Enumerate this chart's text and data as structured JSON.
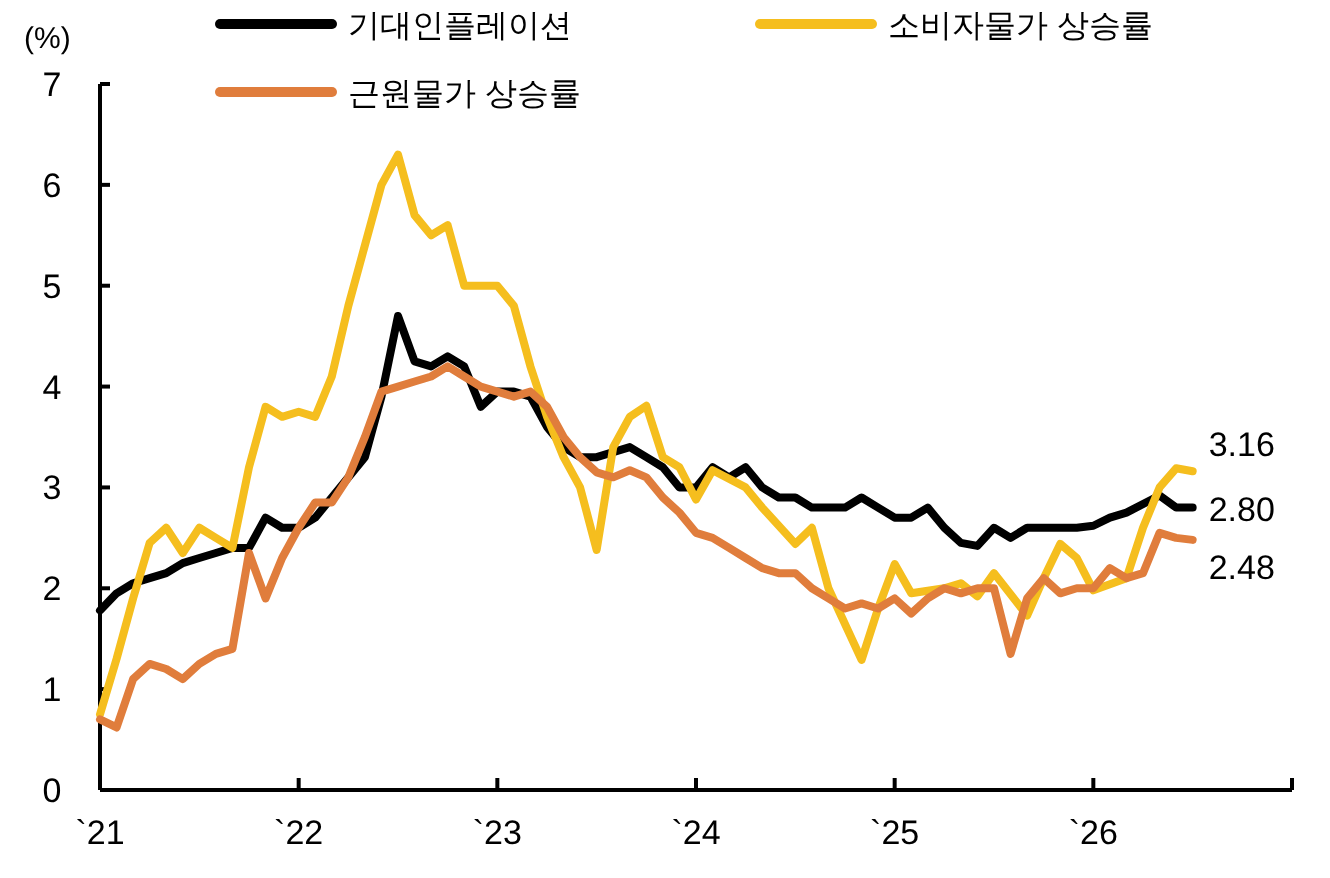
{
  "chart_data": {
    "type": "line",
    "ylabel": "(%)",
    "xlim": [
      "2021-01",
      "2027-01"
    ],
    "xticks": [
      {
        "value": "2021",
        "label": "`21"
      },
      {
        "value": "2022",
        "label": "`22"
      },
      {
        "value": "2023",
        "label": "`23"
      },
      {
        "value": "2024",
        "label": "`24"
      },
      {
        "value": "2025",
        "label": "`25"
      },
      {
        "value": "2026",
        "label": "`26"
      },
      {
        "value": "2027",
        "label": null
      }
    ],
    "ylim": [
      0,
      7
    ],
    "yticks": [
      0,
      1,
      2,
      3,
      4,
      5,
      6,
      7
    ],
    "grid": false,
    "legend": "top",
    "line_style": "solid",
    "marker": "none",
    "series": [
      {
        "name": "기대인플레이션",
        "color": "#000000",
        "x": [
          "2021-01",
          "2021-02",
          "2021-03",
          "2021-04",
          "2021-05",
          "2021-06",
          "2021-07",
          "2021-08",
          "2021-09",
          "2021-10",
          "2021-11",
          "2021-12",
          "2022-01",
          "2022-02",
          "2022-03",
          "2022-04",
          "2022-05",
          "2022-06",
          "2022-07",
          "2022-08",
          "2022-09",
          "2022-10",
          "2022-11",
          "2022-12",
          "2023-01",
          "2023-02",
          "2023-03",
          "2023-04",
          "2023-05",
          "2023-06",
          "2023-07",
          "2023-08",
          "2023-09",
          "2023-10",
          "2023-11",
          "2023-12",
          "2024-01",
          "2024-02",
          "2024-03",
          "2024-04",
          "2024-05",
          "2024-06",
          "2024-07",
          "2024-08",
          "2024-09",
          "2024-10",
          "2024-11",
          "2024-12",
          "2025-01",
          "2025-02",
          "2025-03",
          "2025-04",
          "2025-05",
          "2025-06",
          "2025-07",
          "2025-08",
          "2025-09",
          "2025-10",
          "2025-12",
          "2026-01",
          "2026-02",
          "2026-03",
          "2026-05",
          "2026-06",
          "2026-07"
        ],
        "values": [
          1.78,
          1.95,
          2.05,
          2.1,
          2.15,
          2.25,
          2.3,
          2.35,
          2.4,
          2.4,
          2.7,
          2.6,
          2.6,
          2.7,
          2.9,
          3.1,
          3.3,
          3.9,
          4.7,
          4.25,
          4.2,
          4.3,
          4.2,
          3.8,
          3.95,
          3.95,
          3.9,
          3.6,
          3.4,
          3.3,
          3.3,
          3.35,
          3.4,
          3.3,
          3.2,
          3.0,
          3.0,
          3.2,
          3.1,
          3.2,
          3.0,
          2.9,
          2.9,
          2.8,
          2.8,
          2.8,
          2.9,
          2.8,
          2.7,
          2.7,
          2.8,
          2.6,
          2.45,
          2.42,
          2.6,
          2.5,
          2.6,
          2.6,
          2.6,
          2.62,
          2.7,
          2.75,
          2.92,
          2.8,
          2.8
        ]
      },
      {
        "name": "소비자물가 상승률",
        "color": "#f5be1e",
        "x": [
          "2021-01",
          "2021-02",
          "2021-03",
          "2021-04",
          "2021-05",
          "2021-06",
          "2021-07",
          "2021-08",
          "2021-09",
          "2021-10",
          "2021-11",
          "2021-12",
          "2022-01",
          "2022-02",
          "2022-03",
          "2022-04",
          "2022-05",
          "2022-06",
          "2022-07",
          "2022-08",
          "2022-09",
          "2022-10",
          "2022-11",
          "2022-12",
          "2023-01",
          "2023-02",
          "2023-03",
          "2023-04",
          "2023-05",
          "2023-06",
          "2023-07",
          "2023-08",
          "2023-09",
          "2023-10",
          "2023-11",
          "2023-12",
          "2024-01",
          "2024-02",
          "2024-04",
          "2024-05",
          "2024-07",
          "2024-08",
          "2024-09",
          "2024-11",
          "2024-12",
          "2025-01",
          "2025-02",
          "2025-04",
          "2025-05",
          "2025-06",
          "2025-07",
          "2025-09",
          "2025-10",
          "2025-11",
          "2025-12",
          "2026-01",
          "2026-03",
          "2026-04",
          "2026-05",
          "2026-06",
          "2026-07"
        ],
        "values": [
          0.75,
          1.3,
          1.9,
          2.45,
          2.6,
          2.35,
          2.6,
          2.5,
          2.4,
          3.2,
          3.8,
          3.7,
          3.75,
          3.7,
          4.1,
          4.8,
          5.4,
          6.0,
          6.3,
          5.7,
          5.5,
          5.6,
          5.0,
          5.0,
          5.0,
          4.8,
          4.2,
          3.7,
          3.3,
          3.0,
          2.38,
          3.4,
          3.7,
          3.81,
          3.3,
          3.2,
          2.88,
          3.17,
          3.0,
          2.8,
          2.44,
          2.6,
          2.0,
          1.29,
          1.8,
          2.24,
          1.95,
          2.0,
          2.05,
          1.92,
          2.15,
          1.73,
          2.1,
          2.44,
          2.3,
          1.98,
          2.1,
          2.6,
          3.0,
          3.19,
          3.16
        ]
      },
      {
        "name": "근원물가 상승률",
        "color": "#e07d3c",
        "x": [
          "2021-01",
          "2021-02",
          "2021-03",
          "2021-04",
          "2021-05",
          "2021-06",
          "2021-07",
          "2021-08",
          "2021-09",
          "2021-10",
          "2021-11",
          "2021-12",
          "2022-01",
          "2022-02",
          "2022-03",
          "2022-04",
          "2022-05",
          "2022-06",
          "2022-07",
          "2022-08",
          "2022-09",
          "2022-10",
          "2022-11",
          "2022-12",
          "2023-01",
          "2023-02",
          "2023-03",
          "2023-04",
          "2023-05",
          "2023-06",
          "2023-07",
          "2023-08",
          "2023-09",
          "2023-10",
          "2023-11",
          "2023-12",
          "2024-01",
          "2024-02",
          "2024-03",
          "2024-04",
          "2024-05",
          "2024-06",
          "2024-07",
          "2024-08",
          "2024-09",
          "2024-10",
          "2024-11",
          "2024-12",
          "2025-01",
          "2025-02",
          "2025-03",
          "2025-04",
          "2025-05",
          "2025-06",
          "2025-07",
          "2025-08",
          "2025-09",
          "2025-10",
          "2025-11",
          "2025-12",
          "2026-01",
          "2026-02",
          "2026-03",
          "2026-04",
          "2026-05",
          "2026-06",
          "2026-07"
        ],
        "values": [
          0.7,
          0.62,
          1.1,
          1.25,
          1.2,
          1.1,
          1.25,
          1.35,
          1.4,
          2.35,
          1.9,
          2.3,
          2.6,
          2.85,
          2.85,
          3.1,
          3.5,
          3.95,
          4.0,
          4.05,
          4.1,
          4.2,
          4.1,
          4.0,
          3.95,
          3.9,
          3.95,
          3.8,
          3.5,
          3.3,
          3.15,
          3.1,
          3.17,
          3.1,
          2.9,
          2.75,
          2.55,
          2.5,
          2.4,
          2.3,
          2.2,
          2.15,
          2.15,
          2.0,
          1.9,
          1.8,
          1.85,
          1.8,
          1.9,
          1.75,
          1.9,
          2.0,
          1.95,
          2.0,
          2.0,
          1.35,
          1.9,
          2.1,
          1.95,
          2.0,
          2.0,
          2.2,
          2.1,
          2.15,
          2.55,
          2.5,
          2.48
        ]
      }
    ],
    "annotations": [
      {
        "text": "3.16",
        "x": "2026-07",
        "y": 3.16
      },
      {
        "text": "2.80",
        "x": "2026-07",
        "y": 2.8
      },
      {
        "text": "2.48",
        "x": "2026-07",
        "y": 2.48
      }
    ]
  }
}
